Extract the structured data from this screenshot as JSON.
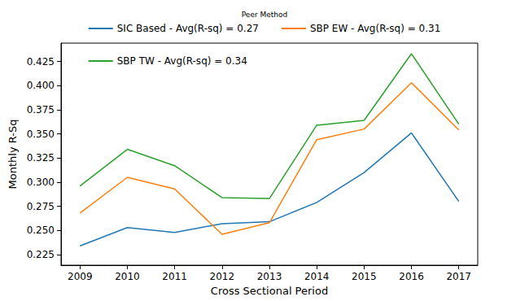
{
  "chart_data": {
    "type": "line",
    "legend_title": "Peer Method",
    "x_label": "Cross Sectional Period",
    "y_label": "Monthly R-Sq",
    "x": [
      2009,
      2010,
      2011,
      2012,
      2013,
      2014,
      2015,
      2016,
      2017
    ],
    "series": [
      {
        "name": "SIC Based - Avg(R-sq) = 0.27",
        "color": "#1f77b4",
        "values": [
          0.234,
          0.253,
          0.248,
          0.257,
          0.259,
          0.279,
          0.31,
          0.351,
          0.28
        ]
      },
      {
        "name": "SBP EW - Avg(R-sq) = 0.31",
        "color": "#ff7f0e",
        "values": [
          0.268,
          0.305,
          0.293,
          0.246,
          0.258,
          0.344,
          0.355,
          0.403,
          0.354
        ]
      },
      {
        "name": "SBP TW - Avg(R-sq) = 0.34",
        "color": "#2ca02c",
        "values": [
          0.296,
          0.334,
          0.317,
          0.284,
          0.283,
          0.359,
          0.364,
          0.433,
          0.36
        ]
      }
    ],
    "xlim": [
      2008.6,
      2017.4
    ],
    "xticks": [
      2009,
      2010,
      2011,
      2012,
      2013,
      2014,
      2015,
      2016,
      2017
    ],
    "ylim": [
      0.214,
      0.444
    ],
    "yticks": [
      0.225,
      {
        "value": 0.25,
        "label": "0.250"
      },
      0.275,
      {
        "value": 0.3,
        "label": "0.300"
      },
      0.325,
      {
        "value": 0.35,
        "label": "0.350"
      },
      0.375,
      {
        "value": 0.4,
        "label": "0.400"
      },
      0.425
    ],
    "grid": false,
    "legend": "top"
  }
}
